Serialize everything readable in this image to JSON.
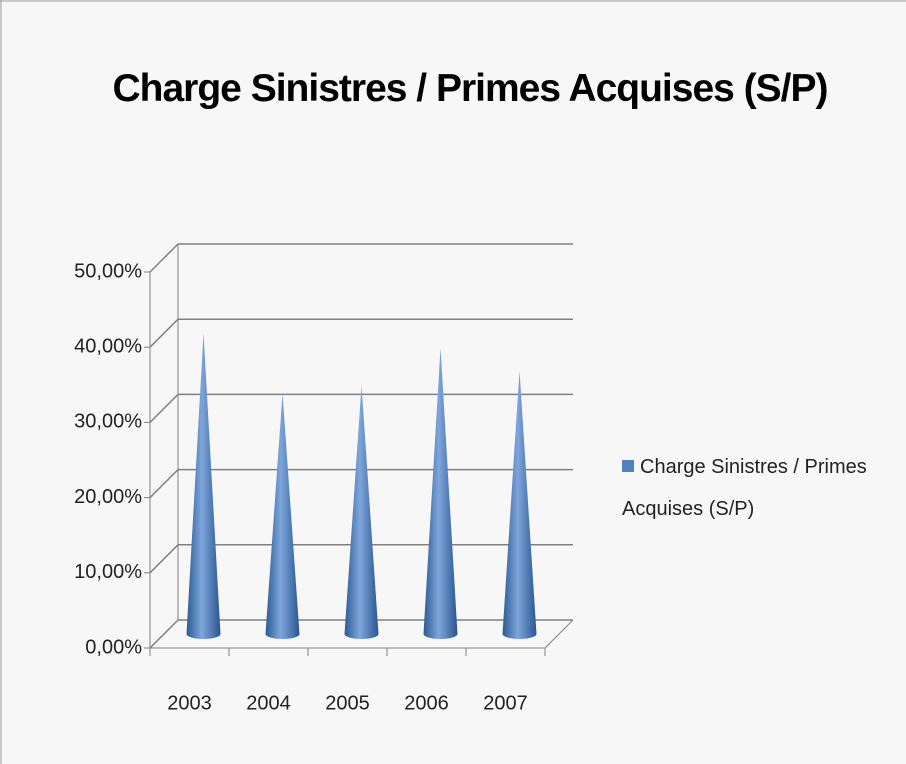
{
  "chart_data": {
    "type": "cone3d",
    "title": "Charge Sinistres / Primes Acquises (S/P)",
    "categories": [
      "2003",
      "2004",
      "2005",
      "2006",
      "2007"
    ],
    "series": [
      {
        "name": "Charge Sinistres / Primes Acquises (S/P)",
        "color": "#4f81bd",
        "values": [
          40,
          32,
          33,
          38,
          35
        ]
      }
    ],
    "ylim": [
      0,
      50
    ],
    "yticks": [
      {
        "value": 0,
        "label": "0,00%"
      },
      {
        "value": 10,
        "label": "10,00%"
      },
      {
        "value": 20,
        "label": "20,00%"
      },
      {
        "value": 30,
        "label": "30,00%"
      },
      {
        "value": 40,
        "label": "40,00%"
      },
      {
        "value": 50,
        "label": "50,00%"
      }
    ],
    "grid": true,
    "legend": "right"
  }
}
